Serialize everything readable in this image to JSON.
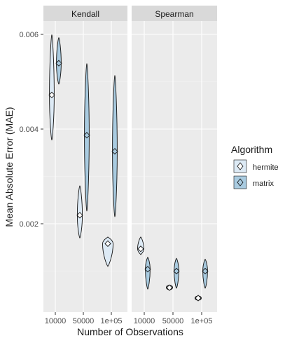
{
  "chart_data": {
    "type": "violin",
    "title": "",
    "xlabel": "Number of Observations",
    "ylabel": "Mean Absolute Error (MAE)",
    "ylim": [
      0.0009,
      0.0061
    ],
    "y_ticks": [
      0.002,
      0.004,
      0.006
    ],
    "y_tick_labels": [
      "0.002",
      "0.004",
      "0.006"
    ],
    "categories": [
      "10000",
      "50000",
      "1e+05"
    ],
    "facets": [
      "Kendall",
      "Spearman"
    ],
    "grid": true,
    "legend": {
      "title": "Algorithm",
      "position": "right",
      "entries": [
        "hermite",
        "matrix"
      ]
    },
    "colors": {
      "hermite": "#ddeaf5",
      "matrix": "#a9cbe0",
      "outline": "#111111",
      "panel_bg": "#ebebeb",
      "strip_bg": "#d9d9d9"
    },
    "series": [
      {
        "name": "hermite",
        "facet": "Kendall",
        "points": [
          {
            "x": "10000",
            "min": 0.00377,
            "max": 0.00599,
            "mean": 0.00472
          },
          {
            "x": "50000",
            "min": 0.0017,
            "max": 0.0028,
            "mean": 0.00218
          },
          {
            "x": "1e+05",
            "min": 0.0011,
            "max": 0.00172,
            "mean": 0.00158
          }
        ]
      },
      {
        "name": "matrix",
        "facet": "Kendall",
        "points": [
          {
            "x": "10000",
            "min": 0.00495,
            "max": 0.00593,
            "mean": 0.00539
          },
          {
            "x": "50000",
            "min": 0.00227,
            "max": 0.00538,
            "mean": 0.00387
          },
          {
            "x": "1e+05",
            "min": 0.00215,
            "max": 0.00513,
            "mean": 0.00353
          }
        ]
      },
      {
        "name": "hermite",
        "facet": "Spearman",
        "points": [
          {
            "x": "10000",
            "min": 0.00135,
            "max": 0.00172,
            "mean": 0.00147
          },
          {
            "x": "50000",
            "min": 0.00062,
            "max": 0.00069,
            "mean": 0.00065
          },
          {
            "x": "1e+05",
            "min": 0.0004,
            "max": 0.00046,
            "mean": 0.00043
          }
        ]
      },
      {
        "name": "matrix",
        "facet": "Spearman",
        "points": [
          {
            "x": "10000",
            "min": 0.00062,
            "max": 0.00129,
            "mean": 0.00104
          },
          {
            "x": "50000",
            "min": 0.00064,
            "max": 0.00127,
            "mean": 0.001
          },
          {
            "x": "1e+05",
            "min": 0.00064,
            "max": 0.00125,
            "mean": 0.001
          }
        ]
      }
    ]
  }
}
